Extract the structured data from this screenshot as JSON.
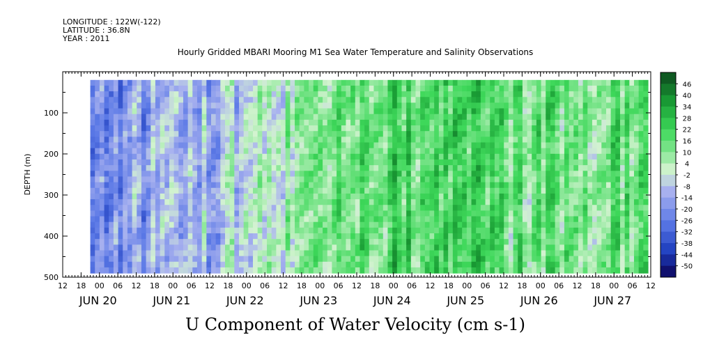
{
  "header": {
    "longitude": "LONGITUDE : 122W(-122)",
    "latitude": "LATITUDE : 36.8N",
    "year": "YEAR : 2011"
  },
  "title": "Hourly Gridded MBARI Mooring M1 Sea Water Temperature and Salinity Observations",
  "footer": "U Component of Water Velocity (cm s-1)",
  "colors": {
    "strong_negative": "#1f3fbf",
    "negative": "#5a78e6",
    "weak_negative": "#a9b2ef",
    "near_zero": "#d3f3d0",
    "weak_positive": "#8fe89b",
    "positive": "#3ed85a",
    "strong_positive": "#1a9e35",
    "missing": "#ffffff"
  },
  "chart_data": {
    "type": "heatmap",
    "ylabel": "DEPTH (m)",
    "ylim": [
      500,
      0
    ],
    "y_ticks": [
      "100",
      "200",
      "300",
      "400",
      "500"
    ],
    "x_hour_ticks": [
      "12",
      "18",
      "00",
      "06",
      "12",
      "18",
      "00",
      "06",
      "12",
      "18",
      "00",
      "06",
      "12",
      "18",
      "00",
      "06",
      "12",
      "18",
      "00",
      "06",
      "12",
      "18",
      "00",
      "06",
      "12",
      "18",
      "00",
      "06",
      "12",
      "18",
      "00",
      "06",
      "12"
    ],
    "x_day_labels": [
      "JUN 20",
      "JUN 21",
      "JUN 22",
      "JUN 23",
      "JUN 24",
      "JUN 25",
      "JUN 26",
      "JUN 27"
    ],
    "x_range": [
      "2011-06-19 12:00",
      "2011-06-27 12:00"
    ],
    "data_start": "2011-06-19 21:00",
    "depth_range": [
      20,
      490
    ],
    "colorbar_levels": [
      "46",
      "40",
      "34",
      "28",
      "22",
      "16",
      "10",
      "4",
      "-2",
      "-8",
      "-14",
      "-20",
      "-26",
      "-32",
      "-38",
      "-44",
      "-50"
    ],
    "colorbar_min": -50,
    "colorbar_max": 46,
    "approx_daily_mean_u": [
      {
        "day": "JUN 20",
        "value": -18
      },
      {
        "day": "JUN 21",
        "value": -15
      },
      {
        "day": "JUN 22",
        "value": -8
      },
      {
        "day": "JUN 23",
        "value": 2
      },
      {
        "day": "JUN 24",
        "value": 16
      },
      {
        "day": "JUN 25",
        "value": 20
      },
      {
        "day": "JUN 26",
        "value": 14
      },
      {
        "day": "JUN 27",
        "value": 12
      }
    ]
  }
}
